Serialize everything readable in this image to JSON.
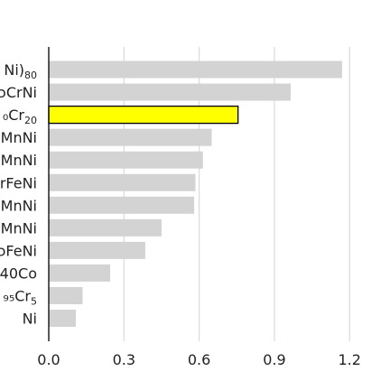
{
  "chart_data": {
    "type": "bar",
    "orientation": "horizontal",
    "title": "",
    "xlabel": "",
    "ylabel": "",
    "xlim": [
      0,
      1.3
    ],
    "xticks": [
      {
        "value": 0.0,
        "label": "0.0"
      },
      {
        "value": 0.3,
        "label": "0.3"
      },
      {
        "value": 0.6,
        "label": "0.6"
      },
      {
        "value": 0.9,
        "label": "0.9"
      },
      {
        "value": 1.2,
        "label": "1.2"
      }
    ],
    "grid": "vertical",
    "categories": [
      {
        "id": "c1",
        "parts": [
          {
            "t": "Ni)",
            "sub": false
          },
          {
            "t": "80",
            "sub": true
          }
        ],
        "value": 1.17,
        "highlight": false
      },
      {
        "id": "c2",
        "parts": [
          {
            "t": "ɔCrNi",
            "sub": false
          }
        ],
        "value": 0.965,
        "highlight": false
      },
      {
        "id": "c3",
        "parts": [
          {
            "t": "₀Cr",
            "sub": false
          },
          {
            "t": "20",
            "sub": true
          }
        ],
        "value": 0.755,
        "highlight": true
      },
      {
        "id": "c4",
        "parts": [
          {
            "t": "MnNi",
            "sub": false
          }
        ],
        "value": 0.65,
        "highlight": false
      },
      {
        "id": "c5",
        "parts": [
          {
            "t": "MnNi",
            "sub": false
          }
        ],
        "value": 0.615,
        "highlight": false
      },
      {
        "id": "c6",
        "parts": [
          {
            "t": "rFeNi",
            "sub": false
          }
        ],
        "value": 0.585,
        "highlight": false
      },
      {
        "id": "c7",
        "parts": [
          {
            "t": "MnNi",
            "sub": false
          }
        ],
        "value": 0.58,
        "highlight": false
      },
      {
        "id": "c8",
        "parts": [
          {
            "t": "MnNi",
            "sub": false
          }
        ],
        "value": 0.45,
        "highlight": false
      },
      {
        "id": "c9",
        "parts": [
          {
            "t": "ɔFeNi",
            "sub": false
          }
        ],
        "value": 0.385,
        "highlight": false
      },
      {
        "id": "c10",
        "parts": [
          {
            "t": "40Co",
            "sub": false
          }
        ],
        "value": 0.245,
        "highlight": false
      },
      {
        "id": "c11",
        "parts": [
          {
            "t": "₉₅Cr",
            "sub": false
          },
          {
            "t": "5",
            "sub": true
          }
        ],
        "value": 0.135,
        "highlight": false
      },
      {
        "id": "c12",
        "parts": [
          {
            "t": "Ni",
            "sub": false
          }
        ],
        "value": 0.108,
        "highlight": false
      }
    ],
    "colors": {
      "bar": "#d3d3d3",
      "highlight": "#ffff00",
      "highlight_edge": "#000000",
      "grid": "#dcdcdc",
      "axis": "#000000"
    }
  }
}
